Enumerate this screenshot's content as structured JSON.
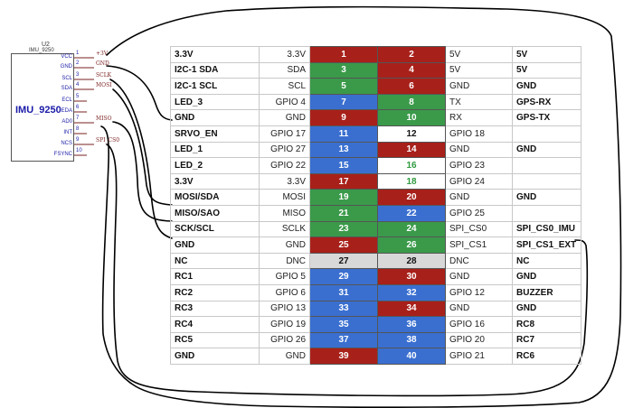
{
  "chip": {
    "title": "IMU_9250",
    "ref": "U2",
    "part": "IMU_9250",
    "pins": [
      {
        "num": "1",
        "label": "VCC",
        "net": "+3V"
      },
      {
        "num": "2",
        "label": "GND",
        "net": "GND"
      },
      {
        "num": "3",
        "label": "SCL",
        "net": "SCLK"
      },
      {
        "num": "4",
        "label": "SDA",
        "net": "MOSI"
      },
      {
        "num": "5",
        "label": "ECL",
        "net": ""
      },
      {
        "num": "6",
        "label": "EDA",
        "net": ""
      },
      {
        "num": "7",
        "label": "AD0",
        "net": "MISO"
      },
      {
        "num": "8",
        "label": "INT",
        "net": ""
      },
      {
        "num": "9",
        "label": "NCS",
        "net": "SPI_CS0"
      },
      {
        "num": "10",
        "label": "FSYNC",
        "net": ""
      }
    ]
  },
  "header_rows": [
    {
      "lfunc": "3.3V",
      "lgpio": "3.3V",
      "lpin": "1",
      "lcolor": "red",
      "rpin": "2",
      "rcolor": "red",
      "rgpio": "5V",
      "rfunc": "5V"
    },
    {
      "lfunc": "I2C-1 SDA",
      "lgpio": "SDA",
      "lpin": "3",
      "lcolor": "green",
      "rpin": "4",
      "rcolor": "red",
      "rgpio": "5V",
      "rfunc": "5V"
    },
    {
      "lfunc": "I2C-1 SCL",
      "lgpio": "SCL",
      "lpin": "5",
      "lcolor": "green",
      "rpin": "6",
      "rcolor": "red",
      "rgpio": "GND",
      "rfunc": "GND"
    },
    {
      "lfunc": "LED_3",
      "lgpio": "GPIO 4",
      "lpin": "7",
      "lcolor": "blue",
      "rpin": "8",
      "rcolor": "green",
      "rgpio": "TX",
      "rfunc": "GPS-RX"
    },
    {
      "lfunc": "GND",
      "lgpio": "GND",
      "lpin": "9",
      "lcolor": "red",
      "rpin": "10",
      "rcolor": "green",
      "rgpio": "RX",
      "rfunc": "GPS-TX"
    },
    {
      "lfunc": "SRVO_EN",
      "lgpio": "GPIO 17",
      "lpin": "11",
      "lcolor": "blue",
      "rpin": "12",
      "rcolor": "white",
      "rgpio": "GPIO 18",
      "rfunc": ""
    },
    {
      "lfunc": "LED_1",
      "lgpio": "GPIO 27",
      "lpin": "13",
      "lcolor": "blue",
      "rpin": "14",
      "rcolor": "red",
      "rgpio": "GND",
      "rfunc": "GND"
    },
    {
      "lfunc": "LED_2",
      "lgpio": "GPIO 22",
      "lpin": "15",
      "lcolor": "blue",
      "rpin": "16",
      "rcolor": "greentext",
      "rgpio": "GPIO 23",
      "rfunc": ""
    },
    {
      "lfunc": "3.3V",
      "lgpio": "3.3V",
      "lpin": "17",
      "lcolor": "red",
      "rpin": "18",
      "rcolor": "greentext",
      "rgpio": "GPIO 24",
      "rfunc": ""
    },
    {
      "lfunc": "MOSI/SDA",
      "lgpio": "MOSI",
      "lpin": "19",
      "lcolor": "green",
      "rpin": "20",
      "rcolor": "red",
      "rgpio": "GND",
      "rfunc": "GND"
    },
    {
      "lfunc": "MISO/SAO",
      "lgpio": "MISO",
      "lpin": "21",
      "lcolor": "green",
      "rpin": "22",
      "rcolor": "blue",
      "rgpio": "GPIO 25",
      "rfunc": ""
    },
    {
      "lfunc": "SCK/SCL",
      "lgpio": "SCLK",
      "lpin": "23",
      "lcolor": "green",
      "rpin": "24",
      "rcolor": "green",
      "rgpio": "SPI_CS0",
      "rfunc": "SPI_CS0_IMU"
    },
    {
      "lfunc": "GND",
      "lgpio": "GND",
      "lpin": "25",
      "lcolor": "red",
      "rpin": "26",
      "rcolor": "green",
      "rgpio": "SPI_CS1",
      "rfunc": "SPI_CS1_EXT"
    },
    {
      "lfunc": "NC",
      "lgpio": "DNC",
      "lpin": "27",
      "lcolor": "gray",
      "rpin": "28",
      "rcolor": "gray",
      "rgpio": "DNC",
      "rfunc": "NC"
    },
    {
      "lfunc": "RC1",
      "lgpio": "GPIO 5",
      "lpin": "29",
      "lcolor": "blue",
      "rpin": "30",
      "rcolor": "red",
      "rgpio": "GND",
      "rfunc": "GND"
    },
    {
      "lfunc": "RC2",
      "lgpio": "GPIO 6",
      "lpin": "31",
      "lcolor": "blue",
      "rpin": "32",
      "rcolor": "blue",
      "rgpio": "GPIO 12",
      "rfunc": "BUZZER"
    },
    {
      "lfunc": "RC3",
      "lgpio": "GPIO 13",
      "lpin": "33",
      "lcolor": "blue",
      "rpin": "34",
      "rcolor": "red",
      "rgpio": "GND",
      "rfunc": "GND"
    },
    {
      "lfunc": "RC4",
      "lgpio": "GPIO 19",
      "lpin": "35",
      "lcolor": "blue",
      "rpin": "36",
      "rcolor": "blue",
      "rgpio": "GPIO 16",
      "rfunc": "RC8"
    },
    {
      "lfunc": "RC5",
      "lgpio": "GPIO 26",
      "lpin": "37",
      "lcolor": "blue",
      "rpin": "38",
      "rcolor": "blue",
      "rgpio": "GPIO 20",
      "rfunc": "RC7"
    },
    {
      "lfunc": "GND",
      "lgpio": "GND",
      "lpin": "39",
      "lcolor": "red",
      "rpin": "40",
      "rcolor": "blue",
      "rgpio": "GPIO 21",
      "rfunc": "RC6"
    }
  ]
}
